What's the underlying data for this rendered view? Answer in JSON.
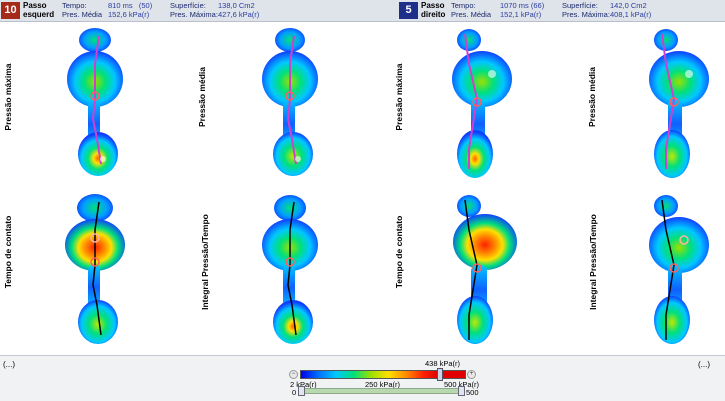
{
  "left_step": {
    "number": "10",
    "name_line1": "Passo",
    "name_line2": "esquerd",
    "tempo_label": "Tempo:",
    "tempo_value": "810 ms",
    "tempo_extra": "(50)",
    "superficie_label": "Superfície:",
    "superficie_value": "138,0 Cm2",
    "pres_media_label": "Pres. Média",
    "pres_media_value": "152,6 kPa(r)",
    "pres_maxima_label": "Pres. Máxima:",
    "pres_maxima_value": "427,6 kPa(r)",
    "badge_color": "#a52a1a"
  },
  "right_step": {
    "number": "5",
    "name_line1": "Passo",
    "name_line2": "direito",
    "tempo_label": "Tempo:",
    "tempo_value": "1070 ms",
    "tempo_extra": "(66)",
    "superficie_label": "Superfície:",
    "superficie_value": "142,0 Cm2",
    "pres_media_label": "Pres. Média",
    "pres_media_value": "152,1 kPa(r)",
    "pres_maxima_label": "Pres. Máxima:",
    "pres_maxima_value": "408,1 kPa(r)",
    "badge_color": "#1e2f8a"
  },
  "cells": {
    "left_top_1": "Pressão máxima",
    "left_top_2": "Pressão média",
    "left_bottom_1": "Tempo de contato",
    "left_bottom_2": "Integral Pressão/Tempo",
    "right_top_1": "Pressão máxima",
    "right_top_2": "Pressão média",
    "right_bottom_1": "Tempo de contato",
    "right_bottom_2": "Integral Pressão/Tempo"
  },
  "footer": {
    "left_dots": "(...)",
    "right_dots": "(...)",
    "scale_max_value": "438 kPa(r)",
    "scale_min_label": "2 kPa(r)",
    "scale_mid_label": "250 kPa(r)",
    "scale_max_label": "500 kPa(r)",
    "slider_min": "0",
    "slider_max": "500",
    "minus_symbol": "−",
    "plus_symbol": "+"
  }
}
